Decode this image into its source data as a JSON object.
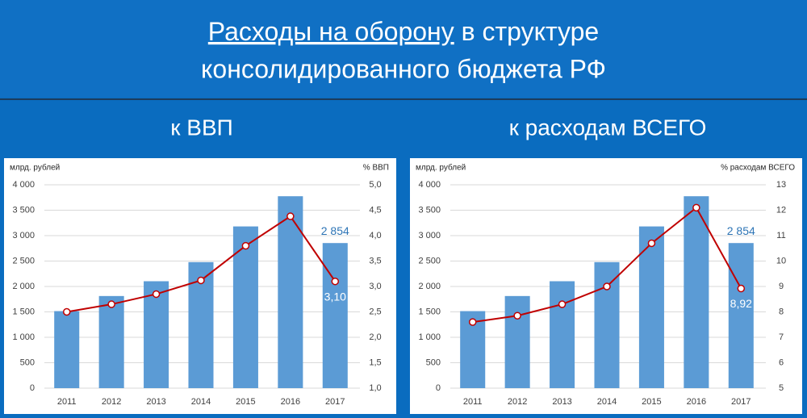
{
  "header": {
    "title_underlined": "Расходы на оборону",
    "title_rest": "в структуре",
    "title_line2": "консолидированного бюджета РФ"
  },
  "chart_data": [
    {
      "type": "bar",
      "title": "к ВВП",
      "ylabel": "млрд. рублей",
      "y2label": "% ВВП",
      "categories": [
        "2011",
        "2012",
        "2013",
        "2014",
        "2015",
        "2016",
        "2017"
      ],
      "series": [
        {
          "type": "bar",
          "color": "#5b9bd5",
          "values": [
            1515,
            1812,
            2103,
            2479,
            3181,
            3775,
            2854
          ],
          "value_labels": [
            null,
            null,
            null,
            null,
            null,
            null,
            "2 854"
          ]
        },
        {
          "type": "line",
          "axis": "y2",
          "color": "#c00000",
          "values": [
            2.5,
            2.65,
            2.85,
            3.12,
            3.8,
            4.38,
            3.1
          ],
          "value_labels": [
            null,
            null,
            null,
            null,
            null,
            null,
            "3,10"
          ]
        }
      ],
      "ylim": [
        0,
        4000
      ],
      "yticks": [
        0,
        500,
        {
          "value": 1000,
          "label": "1 000"
        },
        {
          "value": 1500,
          "label": "1 500"
        },
        {
          "value": 2000,
          "label": "2 000"
        },
        {
          "value": 2500,
          "label": "2 500"
        },
        {
          "value": 3000,
          "label": "3 000"
        },
        {
          "value": 3500,
          "label": "3 500"
        },
        {
          "value": 4000,
          "label": "4 000"
        }
      ],
      "y2lim": [
        1,
        5
      ],
      "y2ticks": [
        {
          "value": 1,
          "label": "1,0"
        },
        {
          "value": 1.5,
          "label": "1,5"
        },
        {
          "value": 2,
          "label": "2,0"
        },
        {
          "value": 2.5,
          "label": "2,5"
        },
        {
          "value": 3,
          "label": "3,0"
        },
        {
          "value": 3.5,
          "label": "3,5"
        },
        {
          "value": 4,
          "label": "4,0"
        },
        {
          "value": 4.5,
          "label": "4,5"
        },
        {
          "value": 5,
          "label": "5,0"
        }
      ]
    },
    {
      "type": "bar",
      "title": "к расходам ВСЕГО",
      "ylabel": "млрд. рублей",
      "y2label": "% расходам ВСЕГО",
      "categories": [
        "2011",
        "2012",
        "2013",
        "2014",
        "2015",
        "2016",
        "2017"
      ],
      "series": [
        {
          "type": "bar",
          "color": "#5b9bd5",
          "values": [
            1515,
            1812,
            2103,
            2479,
            3181,
            3775,
            2854
          ],
          "value_labels": [
            null,
            null,
            null,
            null,
            null,
            null,
            "2 854"
          ]
        },
        {
          "type": "line",
          "axis": "y2",
          "color": "#c00000",
          "values": [
            7.6,
            7.85,
            8.3,
            9.0,
            10.7,
            12.1,
            8.92
          ],
          "value_labels": [
            null,
            null,
            null,
            null,
            null,
            null,
            "8,92"
          ]
        }
      ],
      "ylim": [
        0,
        4000
      ],
      "yticks": [
        0,
        500,
        {
          "value": 1000,
          "label": "1 000"
        },
        {
          "value": 1500,
          "label": "1 500"
        },
        {
          "value": 2000,
          "label": "2 000"
        },
        {
          "value": 2500,
          "label": "2 500"
        },
        {
          "value": 3000,
          "label": "3 000"
        },
        {
          "value": 3500,
          "label": "3 500"
        },
        {
          "value": 4000,
          "label": "4 000"
        }
      ],
      "y2lim": [
        5,
        13
      ],
      "y2ticks": [
        5,
        6,
        7,
        8,
        9,
        10,
        11,
        12,
        13
      ]
    }
  ]
}
